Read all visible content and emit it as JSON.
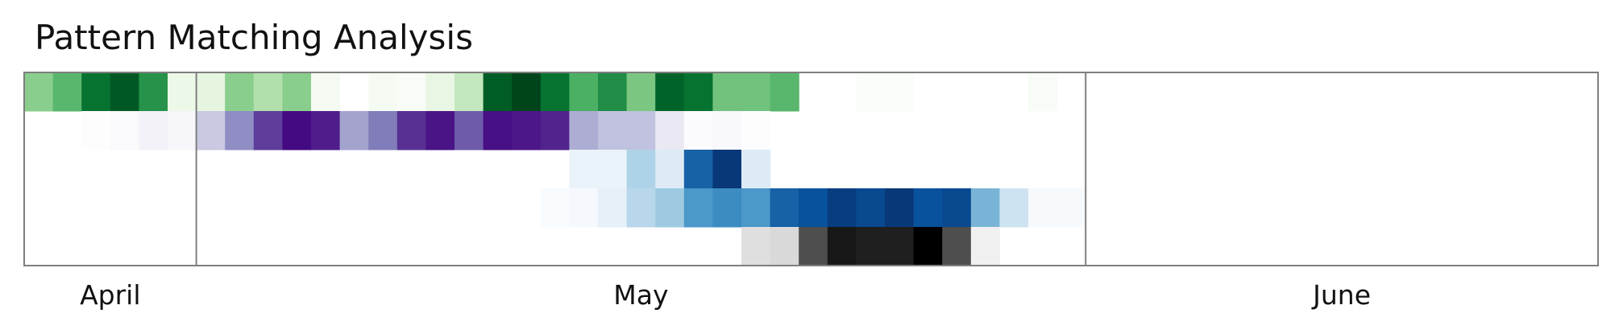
{
  "chart_data": {
    "type": "heatmap",
    "title": "Pattern Matching Analysis",
    "x_labels": [
      "April",
      "May",
      "June"
    ],
    "start_date": "2024-04-26",
    "group_separators_after_day": [
      6,
      37
    ],
    "grid": false,
    "legend": "none",
    "rows": [
      {
        "colormap": "green",
        "values": [
          0.45,
          0.55,
          0.78,
          0.9,
          0.68,
          0.15,
          0.2,
          0.45,
          0.35,
          0.45,
          0.08,
          0,
          0.08,
          0.06,
          0.18,
          0.3,
          0.88,
          1,
          0.78,
          0.58,
          0.7,
          0.48,
          0.85,
          0.78,
          0.5,
          0.5,
          0.55,
          0,
          0,
          0.04,
          0.04,
          0,
          0,
          0,
          0,
          0.06,
          0,
          0
        ]
      },
      {
        "colormap": "purple",
        "values": [
          0,
          0,
          0.02,
          0.06,
          0.15,
          0.1,
          0.35,
          0.55,
          0.75,
          0.95,
          0.85,
          0.48,
          0.6,
          0.78,
          0.9,
          0.68,
          0.92,
          0.88,
          0.82,
          0.45,
          0.38,
          0.38,
          0.22,
          0.05,
          0.08,
          0.02,
          0,
          0,
          0,
          0,
          0,
          0,
          0,
          0,
          0,
          0,
          0,
          0
        ]
      },
      {
        "colormap": "blue",
        "values": [
          0,
          0,
          0,
          0,
          0,
          0,
          0,
          0,
          0,
          0,
          0,
          0,
          0,
          0,
          0,
          0,
          0,
          0,
          0,
          0.12,
          0.12,
          0.35,
          0.2,
          0.75,
          0.95,
          0.2,
          0,
          0,
          0,
          0,
          0,
          0,
          0,
          0,
          0,
          0,
          0,
          0
        ]
      },
      {
        "colormap": "blue",
        "values": [
          0,
          0,
          0,
          0,
          0,
          0,
          0,
          0,
          0,
          0,
          0,
          0,
          0,
          0,
          0,
          0,
          0,
          0,
          0.04,
          0.06,
          0.15,
          0.32,
          0.4,
          0.58,
          0.62,
          0.58,
          0.75,
          0.8,
          0.92,
          0.85,
          0.95,
          0.8,
          0.85,
          0.48,
          0.25,
          0.05,
          0.05,
          0
        ]
      },
      {
        "colormap": "gray",
        "values": [
          0,
          0,
          0,
          0,
          0,
          0,
          0,
          0,
          0,
          0,
          0,
          0,
          0,
          0,
          0,
          0,
          0,
          0,
          0,
          0,
          0,
          0,
          0,
          0,
          0,
          0.17,
          0.2,
          0.62,
          0.87,
          0.83,
          0.83,
          1,
          0.62,
          0.08,
          0,
          0,
          0,
          0
        ]
      }
    ]
  }
}
